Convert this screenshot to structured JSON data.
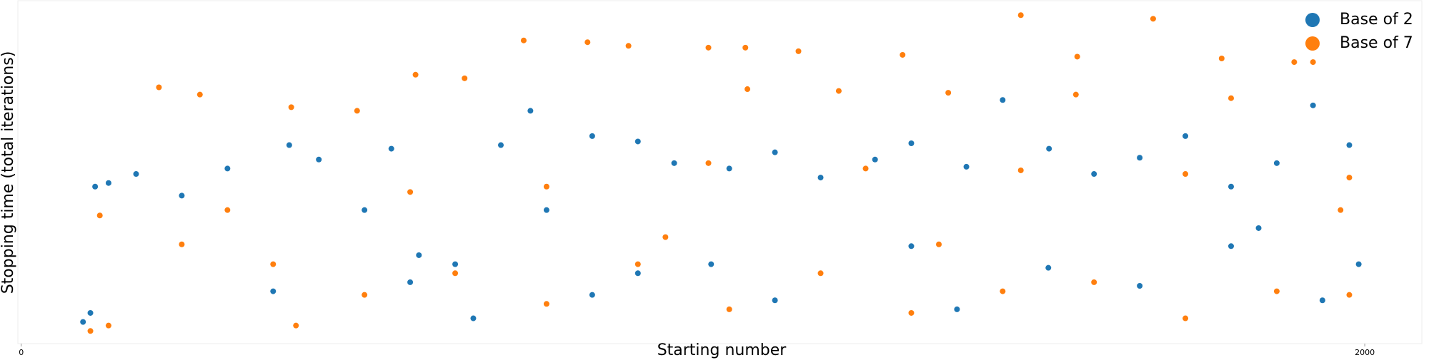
{
  "chart_data": {
    "type": "scatter",
    "x_label": "Starting number",
    "y_label": "Stopping time (total iterations)",
    "xlim": [
      -5,
      2085
    ],
    "ylim": [
      0,
      190
    ],
    "xticks": [
      0,
      2000
    ],
    "legend": "upper right",
    "series": [
      {
        "name": "Base of 2",
        "color": "#1f77b4",
        "x": [
          92,
          103,
          110,
          130,
          171,
          239,
          307,
          399,
          443,
          511,
          551,
          592,
          646,
          714,
          758,
          782,
          850,
          918,
          972,
          1054,
          1122,
          1190,
          1271,
          1325,
          1407,
          1461,
          1530,
          1597,
          1665,
          1733,
          1801,
          1869,
          1923,
          1977,
          1991,
          375,
          579,
          850,
          1122,
          1393,
          1665,
          1937,
          918,
          1529,
          1325,
          1801,
          673,
          1027,
          1842
        ],
        "values": [
          12,
          17,
          87,
          89,
          94,
          82,
          97,
          110,
          102,
          74,
          108,
          49,
          44,
          110,
          129,
          74,
          115,
          112,
          100,
          97,
          106,
          92,
          102,
          111,
          98,
          135,
          108,
          94,
          103,
          115,
          87,
          100,
          132,
          110,
          44,
          29,
          34,
          27,
          24,
          19,
          32,
          24,
          39,
          42,
          54,
          54,
          14,
          44,
          64
        ]
      },
      {
        "name": "Base of 7",
        "color": "#ff7f0e",
        "x": [
          103,
          130,
          205,
          266,
          402,
          500,
          587,
          660,
          748,
          843,
          904,
          1023,
          1078,
          1157,
          1312,
          1488,
          1572,
          1685,
          1787,
          1895,
          1923,
          117,
          239,
          375,
          409,
          511,
          646,
          782,
          918,
          1054,
          1190,
          1325,
          1461,
          1597,
          1733,
          1869,
          1977,
          1964,
          1733,
          1488,
          1257,
          1023,
          782,
          579,
          307,
          1081,
          1217,
          1380,
          1570,
          1801,
          1977,
          1366,
          959
        ],
        "values": [
          7,
          10,
          142,
          138,
          131,
          129,
          149,
          147,
          168,
          167,
          165,
          164,
          164,
          162,
          160,
          182,
          159,
          180,
          158,
          156,
          156,
          71,
          55,
          44,
          10,
          27,
          39,
          22,
          44,
          19,
          39,
          17,
          29,
          34,
          14,
          29,
          27,
          74,
          94,
          96,
          97,
          100,
          87,
          84,
          74,
          141,
          140,
          139,
          138,
          136,
          92,
          55,
          59
        ]
      }
    ]
  }
}
